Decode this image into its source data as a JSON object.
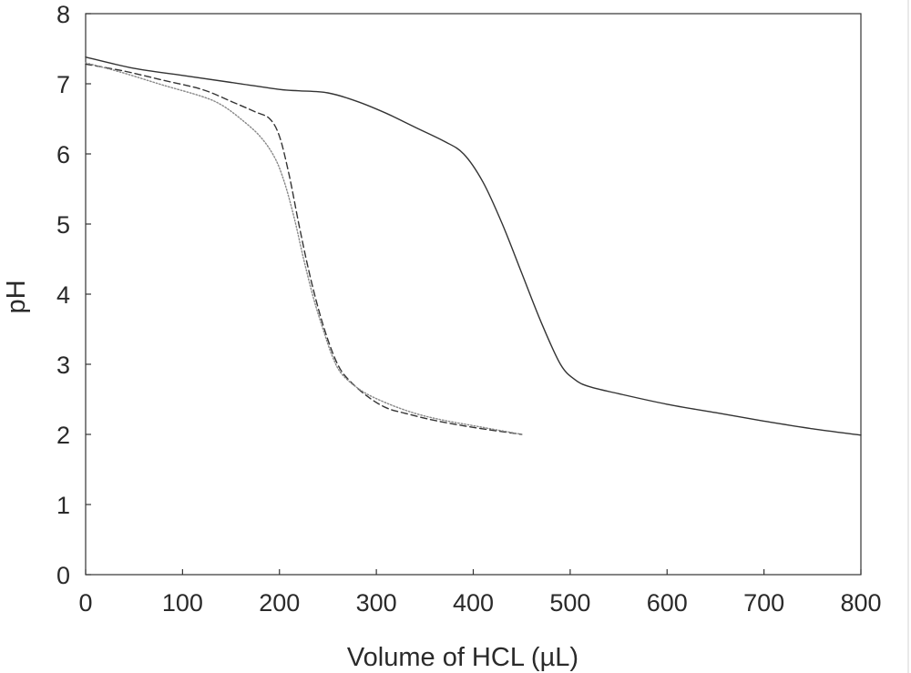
{
  "chart_data": {
    "type": "line",
    "title": "",
    "xlabel": "Volume of HCL (µL)",
    "ylabel": "pH",
    "xlim": [
      0,
      800
    ],
    "ylim": [
      0,
      8
    ],
    "xticks": [
      0,
      100,
      200,
      300,
      400,
      500,
      600,
      700,
      800
    ],
    "yticks": [
      0,
      1,
      2,
      3,
      4,
      5,
      6,
      7,
      8
    ],
    "grid": false,
    "legend": "none",
    "series": [
      {
        "style": "solid",
        "color": "#333333",
        "x": [
          0,
          50,
          100,
          150,
          200,
          220,
          250,
          280,
          310,
          340,
          370,
          390,
          410,
          430,
          450,
          470,
          490,
          505,
          520,
          550,
          600,
          650,
          700,
          750,
          800
        ],
        "y": [
          7.38,
          7.22,
          7.12,
          7.02,
          6.92,
          6.9,
          6.87,
          6.75,
          6.58,
          6.38,
          6.18,
          6.0,
          5.6,
          5.0,
          4.3,
          3.6,
          3.0,
          2.78,
          2.68,
          2.58,
          2.43,
          2.31,
          2.19,
          2.08,
          1.99
        ]
      },
      {
        "style": "dashed",
        "color": "#333333",
        "x": [
          0,
          40,
          80,
          120,
          150,
          175,
          190,
          200,
          210,
          220,
          230,
          240,
          250,
          260,
          270,
          290,
          310,
          330,
          360,
          400,
          450
        ],
        "y": [
          7.28,
          7.18,
          7.05,
          6.92,
          6.75,
          6.6,
          6.5,
          6.25,
          5.7,
          5.0,
          4.35,
          3.8,
          3.35,
          3.0,
          2.8,
          2.55,
          2.38,
          2.3,
          2.2,
          2.1,
          2.0
        ]
      },
      {
        "style": "dotted",
        "color": "#888888",
        "x": [
          0,
          40,
          80,
          120,
          140,
          160,
          180,
          195,
          205,
          215,
          225,
          235,
          245,
          255,
          265,
          285,
          310,
          340,
          370,
          410,
          450
        ],
        "y": [
          7.3,
          7.15,
          6.98,
          6.82,
          6.7,
          6.5,
          6.25,
          5.95,
          5.6,
          5.1,
          4.5,
          3.95,
          3.5,
          3.1,
          2.85,
          2.62,
          2.45,
          2.3,
          2.2,
          2.1,
          2.0
        ]
      }
    ]
  }
}
